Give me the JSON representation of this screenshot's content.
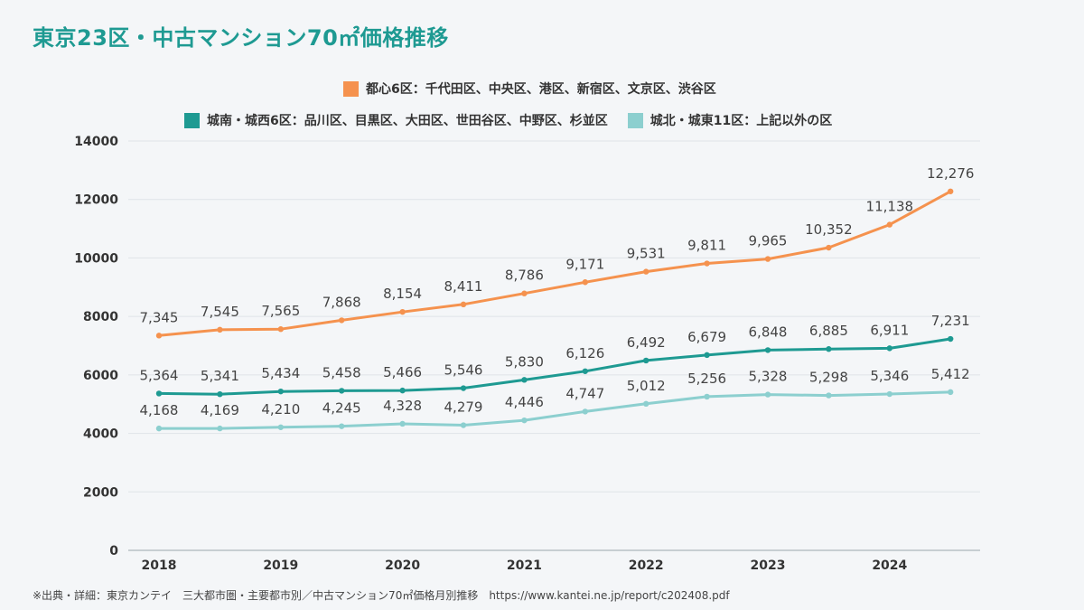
{
  "title": "東京23区・中古マンション70㎡価格推移",
  "footer": "※出典・詳細：東京カンテイ　三大都市圏・主要都市別／中古マンション70㎡価格月別推移　https://www.kantei.ne.jp/report/c202408.pdf",
  "chart_data": {
    "type": "line",
    "x_ticks": [
      "2018",
      "2019",
      "2020",
      "2021",
      "2022",
      "2023",
      "2024"
    ],
    "ylim": [
      0,
      14000
    ],
    "y_ticks": [
      0,
      2000,
      4000,
      6000,
      8000,
      10000,
      12000,
      14000
    ],
    "grid": true,
    "legend_position": "top",
    "series": [
      {
        "name": "都心6区：千代田区、中央区、港区、新宿区、文京区、渋谷区",
        "color": "#f5924e",
        "values": [
          7345,
          7545,
          7565,
          7868,
          8154,
          8411,
          8786,
          9171,
          9531,
          9811,
          9965,
          10352,
          11138,
          12276
        ],
        "labels": [
          "7,345",
          "7,545",
          "7,565",
          "7,868",
          "8,154",
          "8,411",
          "8,786",
          "9,171",
          "9,531",
          "9,811",
          "9,965",
          "10,352",
          "11,138",
          "12,276"
        ]
      },
      {
        "name": "城南・城西6区：品川区、目黒区、大田区、世田谷区、中野区、杉並区",
        "color": "#1e9a92",
        "values": [
          5364,
          5341,
          5434,
          5458,
          5466,
          5546,
          5830,
          6126,
          6492,
          6679,
          6848,
          6885,
          6911,
          7231
        ],
        "labels": [
          "5,364",
          "5,341",
          "5,434",
          "5,458",
          "5,466",
          "5,546",
          "5,830",
          "6,126",
          "6,492",
          "6,679",
          "6,848",
          "6,885",
          "6,911",
          "7,231"
        ]
      },
      {
        "name": "城北・城東11区：上記以外の区",
        "color": "#8ccfcf",
        "values": [
          4168,
          4169,
          4210,
          4245,
          4328,
          4279,
          4446,
          4747,
          5012,
          5256,
          5328,
          5298,
          5346,
          5412
        ],
        "labels": [
          "4,168",
          "4,169",
          "4,210",
          "4,245",
          "4,328",
          "4,279",
          "4,446",
          "4,747",
          "5,012",
          "5,256",
          "5,328",
          "5,298",
          "5,346",
          "5,412"
        ]
      }
    ]
  }
}
